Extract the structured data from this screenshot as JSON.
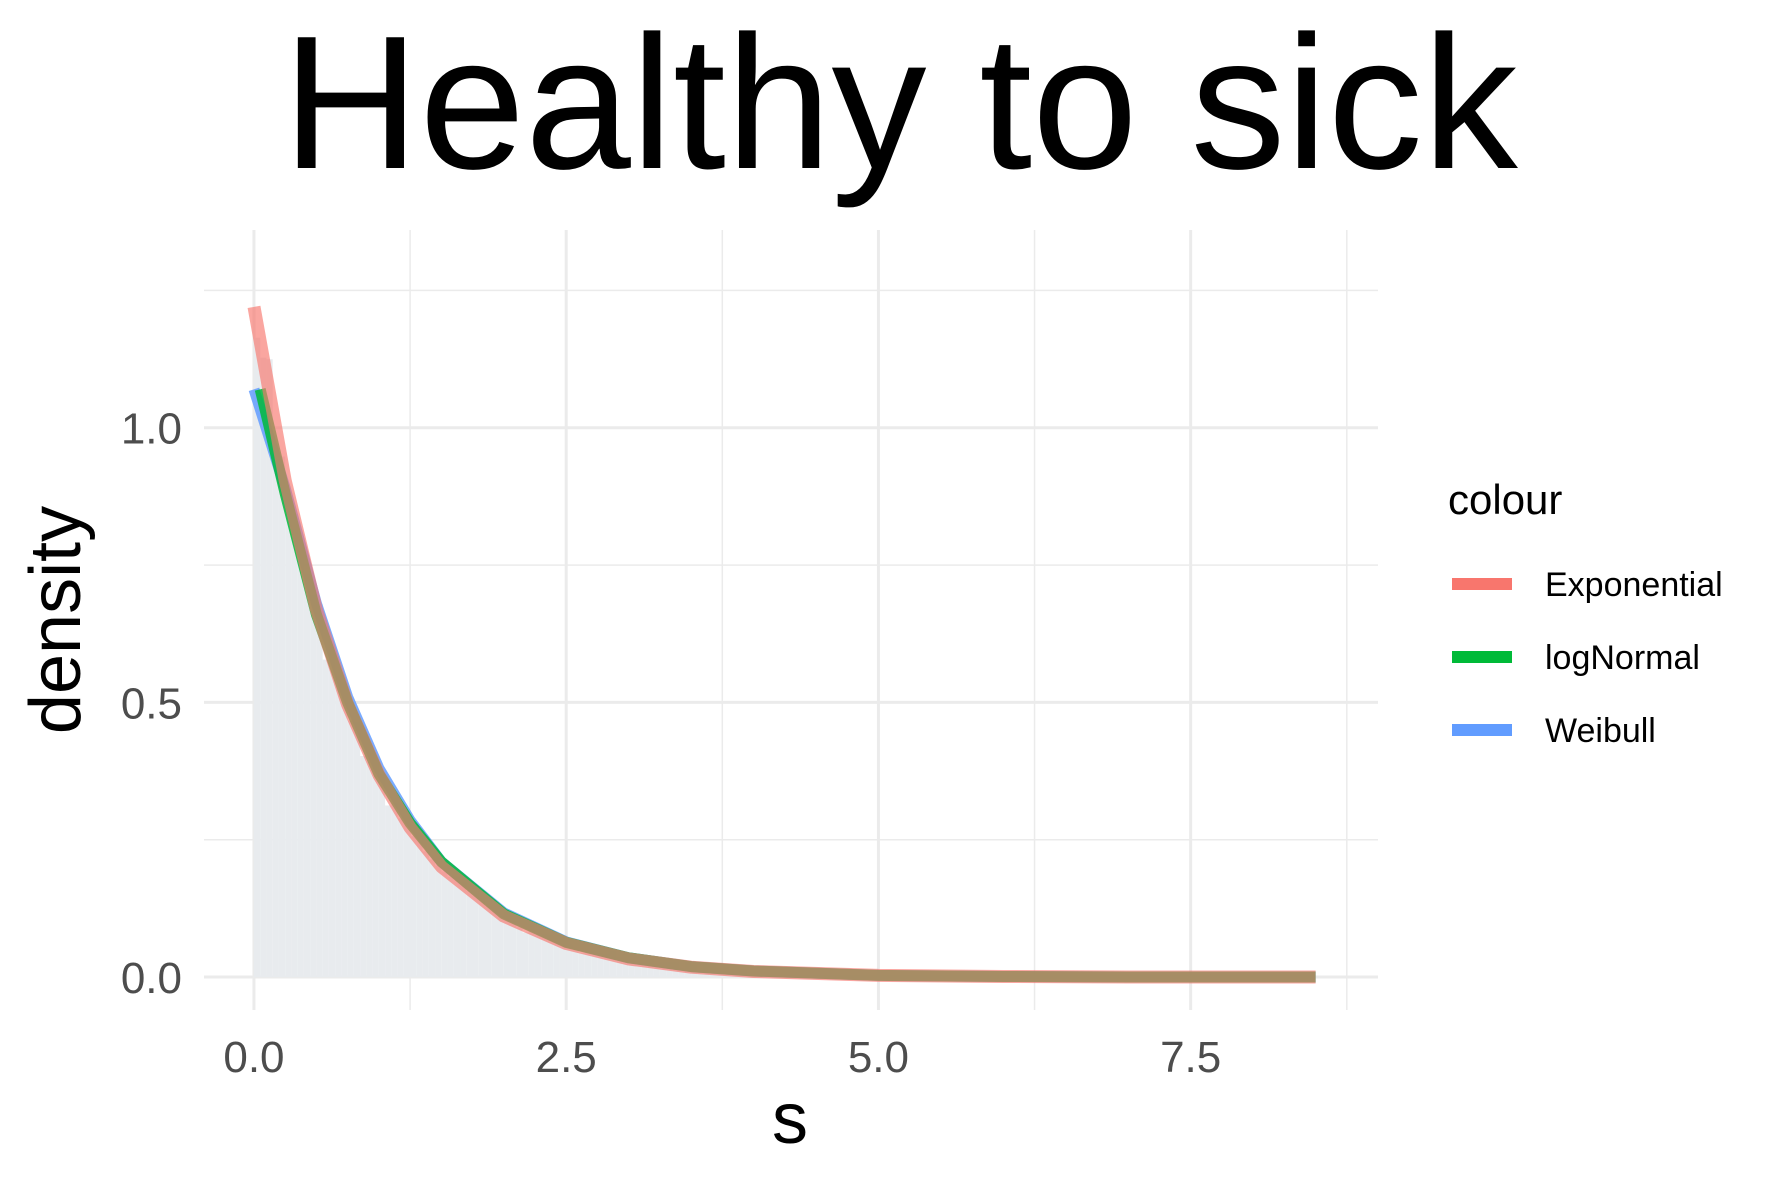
{
  "chart_data": {
    "type": "line",
    "title": "Healthy to sick",
    "xlabel": "s",
    "ylabel": "density",
    "xlim": [
      -0.4,
      9.0
    ],
    "ylim": [
      -0.06,
      1.36
    ],
    "x_ticks": [
      0.0,
      2.5,
      5.0,
      7.5
    ],
    "x_tick_labels": [
      "0.0",
      "2.5",
      "5.0",
      "7.5"
    ],
    "y_ticks": [
      0.0,
      0.5,
      1.0
    ],
    "y_tick_labels": [
      "0.0",
      "0.5",
      "1.0"
    ],
    "grid": true,
    "legend_title": "colour",
    "legend_position": "right",
    "histogram": {
      "color": "#e8ebee",
      "bin_width": 0.05,
      "rate": 1.2,
      "x_max": 3.9
    },
    "series": [
      {
        "name": "Exponential",
        "color": "#f8766d",
        "x": [
          0,
          0.25,
          0.5,
          0.75,
          1.0,
          1.25,
          1.5,
          2.0,
          2.5,
          3.0,
          3.5,
          4.0,
          5.0,
          6.0,
          7.0,
          8.0,
          8.5
        ],
        "y": [
          1.22,
          0.904,
          0.669,
          0.496,
          0.368,
          0.272,
          0.201,
          0.111,
          0.061,
          0.033,
          0.018,
          0.01,
          0.003,
          0.001,
          0.0,
          0.0,
          0.0
        ]
      },
      {
        "name": "logNormal",
        "color": "#00ba38",
        "x": [
          0.05,
          0.25,
          0.5,
          0.75,
          1.0,
          1.25,
          1.5,
          2.0,
          2.5,
          3.0,
          3.5,
          4.0,
          5.0,
          6.0,
          7.0,
          8.0,
          8.5
        ],
        "y": [
          1.07,
          0.88,
          0.66,
          0.5,
          0.37,
          0.28,
          0.21,
          0.115,
          0.063,
          0.035,
          0.019,
          0.011,
          0.003,
          0.001,
          0.0,
          0.0,
          0.0
        ]
      },
      {
        "name": "Weibull",
        "color": "#619cff",
        "x": [
          0.0,
          0.25,
          0.5,
          0.75,
          1.0,
          1.25,
          1.5,
          2.0,
          2.5,
          3.0,
          3.5,
          4.0,
          5.0,
          6.0,
          7.0,
          8.0,
          8.5
        ],
        "y": [
          1.07,
          0.89,
          0.68,
          0.51,
          0.38,
          0.285,
          0.21,
          0.117,
          0.064,
          0.035,
          0.019,
          0.011,
          0.003,
          0.001,
          0.0,
          0.0,
          0.0
        ]
      }
    ]
  }
}
